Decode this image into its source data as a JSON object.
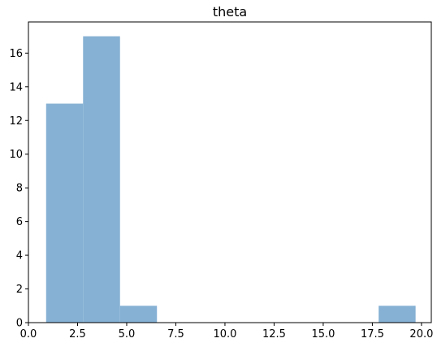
{
  "chart_data": {
    "type": "bar",
    "title": "theta",
    "xlabel": "",
    "ylabel": "",
    "xlim": [
      0.0,
      20.5
    ],
    "ylim": [
      0,
      17.85
    ],
    "bar_color": "#86b1d4",
    "bins": [
      {
        "x0": 0.9,
        "x1": 2.78,
        "count": 13
      },
      {
        "x0": 2.78,
        "x1": 4.66,
        "count": 17
      },
      {
        "x0": 4.66,
        "x1": 6.54,
        "count": 1
      },
      {
        "x0": 6.54,
        "x1": 8.42,
        "count": 0
      },
      {
        "x0": 8.42,
        "x1": 10.3,
        "count": 0
      },
      {
        "x0": 10.3,
        "x1": 12.18,
        "count": 0
      },
      {
        "x0": 12.18,
        "x1": 14.06,
        "count": 0
      },
      {
        "x0": 14.06,
        "x1": 15.94,
        "count": 0
      },
      {
        "x0": 15.94,
        "x1": 17.82,
        "count": 0
      },
      {
        "x0": 17.82,
        "x1": 19.7,
        "count": 1
      }
    ],
    "x_ticks": [
      {
        "value": 0.0,
        "label": "0.0"
      },
      {
        "value": 2.5,
        "label": "2.5"
      },
      {
        "value": 5.0,
        "label": "5.0"
      },
      {
        "value": 7.5,
        "label": "7.5"
      },
      {
        "value": 10.0,
        "label": "10.0"
      },
      {
        "value": 12.5,
        "label": "12.5"
      },
      {
        "value": 15.0,
        "label": "15.0"
      },
      {
        "value": 17.5,
        "label": "17.5"
      },
      {
        "value": 20.0,
        "label": "20.0"
      }
    ],
    "y_ticks": [
      {
        "value": 0,
        "label": "0"
      },
      {
        "value": 2,
        "label": "2"
      },
      {
        "value": 4,
        "label": "4"
      },
      {
        "value": 6,
        "label": "6"
      },
      {
        "value": 8,
        "label": "8"
      },
      {
        "value": 10,
        "label": "10"
      },
      {
        "value": 12,
        "label": "12"
      },
      {
        "value": 14,
        "label": "14"
      },
      {
        "value": 16,
        "label": "16"
      }
    ]
  }
}
